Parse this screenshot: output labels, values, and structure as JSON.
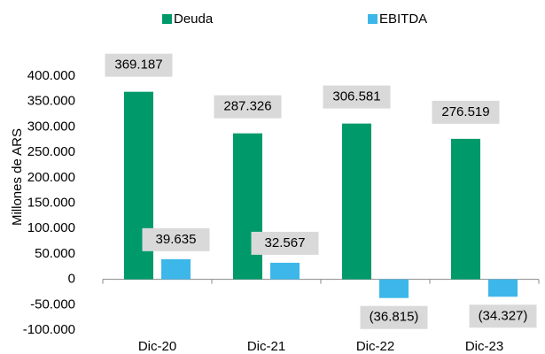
{
  "chart_data": {
    "type": "bar",
    "y_label": "Millones de ARS",
    "categories": [
      "Dic-20",
      "Dic-21",
      "Dic-22",
      "Dic-23"
    ],
    "series": [
      {
        "name": "Deuda",
        "color": "#009a6a",
        "values": [
          369187,
          287326,
          306581,
          276519
        ],
        "value_labels": [
          "369.187",
          "287.326",
          "306.581",
          "276.519"
        ]
      },
      {
        "name": "EBITDA",
        "color": "#3db7e9",
        "values": [
          39635,
          32567,
          -36815,
          -34327
        ],
        "value_labels": [
          "39.635",
          "32.567",
          "(36.815)",
          "(34.327)"
        ]
      }
    ],
    "ylim": [
      -100000,
      400000
    ],
    "yticks": [
      {
        "value": -100000,
        "label": "-100.000"
      },
      {
        "value": -50000,
        "label": "-50.000"
      },
      0,
      {
        "value": 50000,
        "label": "50.000"
      },
      {
        "value": 100000,
        "label": "100.000"
      },
      {
        "value": 150000,
        "label": "150.000"
      },
      {
        "value": 200000,
        "label": "200.000"
      },
      {
        "value": 250000,
        "label": "250.000"
      },
      {
        "value": 300000,
        "label": "300.000"
      },
      {
        "value": 350000,
        "label": "350.000"
      },
      {
        "value": 400000,
        "label": "400.000"
      }
    ],
    "legend": "top",
    "grid": false
  }
}
